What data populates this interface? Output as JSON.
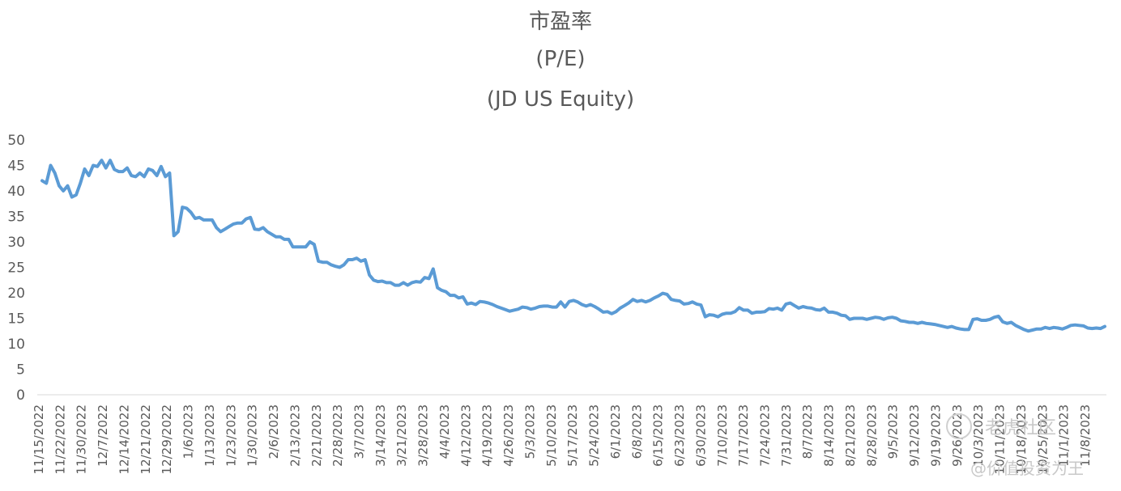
{
  "chart_data": {
    "type": "line",
    "title": "市盈率",
    "subtitle": "(P/E)",
    "subtitle2": "(JD US Equity)",
    "ylim": [
      0,
      50
    ],
    "yticks": [
      0,
      5,
      10,
      15,
      20,
      25,
      30,
      35,
      40,
      45,
      50
    ],
    "grid": false,
    "legend": "none",
    "line_color": "#5B9BD5",
    "x_tick_labels": [
      "11/15/2022",
      "11/22/2022",
      "11/30/2022",
      "12/7/2022",
      "12/14/2022",
      "12/21/2022",
      "12/29/2022",
      "1/6/2023",
      "1/13/2023",
      "1/23/2023",
      "1/30/2023",
      "2/6/2023",
      "2/13/2023",
      "2/21/2023",
      "2/28/2023",
      "3/7/2023",
      "3/14/2023",
      "3/21/2023",
      "3/28/2023",
      "4/4/2023",
      "4/12/2023",
      "4/19/2023",
      "4/26/2023",
      "5/3/2023",
      "5/10/2023",
      "5/17/2023",
      "5/24/2023",
      "6/1/2023",
      "6/8/2023",
      "6/15/2023",
      "6/23/2023",
      "6/30/2023",
      "7/10/2023",
      "7/17/2023",
      "7/24/2023",
      "7/31/2023",
      "8/7/2023",
      "8/14/2023",
      "8/21/2023",
      "8/28/2023",
      "9/5/2023",
      "9/12/2023",
      "9/19/2023",
      "9/26/2023",
      "10/3/2023",
      "10/11/2023",
      "10/18/2023",
      "10/25/2023",
      "11/1/2023",
      "11/8/2023"
    ],
    "series": [
      {
        "values": [
          42,
          41.5,
          45,
          43.5,
          41,
          40,
          41,
          38.8,
          39.2,
          41.5,
          44.3,
          43,
          45,
          44.8,
          46,
          44.5,
          46,
          44.2,
          43.8,
          43.8,
          44.5,
          43,
          42.8,
          43.5,
          42.8,
          44.3,
          44,
          43,
          44.8,
          42.8,
          43.5,
          31.2,
          32,
          36.8,
          36.6,
          35.8,
          34.6,
          34.8,
          34.3,
          34.3,
          34.3,
          32.8,
          32,
          32.5,
          33,
          33.5,
          33.7,
          33.7,
          34.5,
          34.8,
          32.5,
          32.4,
          32.8,
          32,
          31.5,
          31,
          31,
          30.5,
          30.5,
          29,
          29,
          29,
          29,
          30,
          29.5,
          26.2,
          26,
          26,
          25.5,
          25.2,
          25,
          25.5,
          26.5,
          26.5,
          26.8,
          26.2,
          26.5,
          23.5,
          22.5,
          22.2,
          22.3,
          22,
          22,
          21.5,
          21.5,
          22,
          21.5,
          22,
          22.2,
          22.1,
          23,
          22.8,
          24.7,
          21,
          20.5,
          20.2,
          19.5,
          19.5,
          19,
          19.2,
          17.8,
          18,
          17.7,
          18.3,
          18.2,
          18,
          17.7,
          17.3,
          17,
          16.7,
          16.4,
          16.6,
          16.8,
          17.2,
          17.1,
          16.8,
          17,
          17.3,
          17.4,
          17.4,
          17.2,
          17.2,
          18.2,
          17.2,
          18.3,
          18.5,
          18.2,
          17.7,
          17.4,
          17.7,
          17.3,
          16.8,
          16.2,
          16.3,
          15.9,
          16.3,
          17,
          17.5,
          18,
          18.7,
          18.3,
          18.5,
          18.2,
          18.5,
          19,
          19.4,
          19.9,
          19.7,
          18.7,
          18.5,
          18.4,
          17.8,
          17.9,
          18.2,
          17.8,
          17.6,
          15.3,
          15.7,
          15.6,
          15.3,
          15.8,
          16,
          16,
          16.3,
          17.1,
          16.6,
          16.6,
          16,
          16.2,
          16.2,
          16.3,
          16.9,
          16.8,
          17,
          16.6,
          17.8,
          18,
          17.5,
          17,
          17.3,
          17.1,
          17,
          16.7,
          16.6,
          17,
          16.2,
          16.2,
          16,
          15.6,
          15.5,
          14.8,
          15,
          15,
          15,
          14.8,
          15,
          15.2,
          15.1,
          14.8,
          15.1,
          15.2,
          15,
          14.5,
          14.4,
          14.2,
          14.2,
          14,
          14.2,
          14,
          13.9,
          13.8,
          13.6,
          13.4,
          13.2,
          13.4,
          13.1,
          12.9,
          12.8,
          12.8,
          14.8,
          14.9,
          14.6,
          14.6,
          14.8,
          15.2,
          15.4,
          14.3,
          14,
          14.2,
          13.6,
          13.2,
          12.8,
          12.5,
          12.7,
          12.9,
          12.9,
          13.2,
          13,
          13.2,
          13.1,
          12.9,
          13.2,
          13.6,
          13.7,
          13.6,
          13.5,
          13.1,
          13,
          13.1,
          13,
          13.4
        ]
      }
    ]
  },
  "watermark": {
    "line1": "老虎社区",
    "line2": "@价值投资为王"
  }
}
